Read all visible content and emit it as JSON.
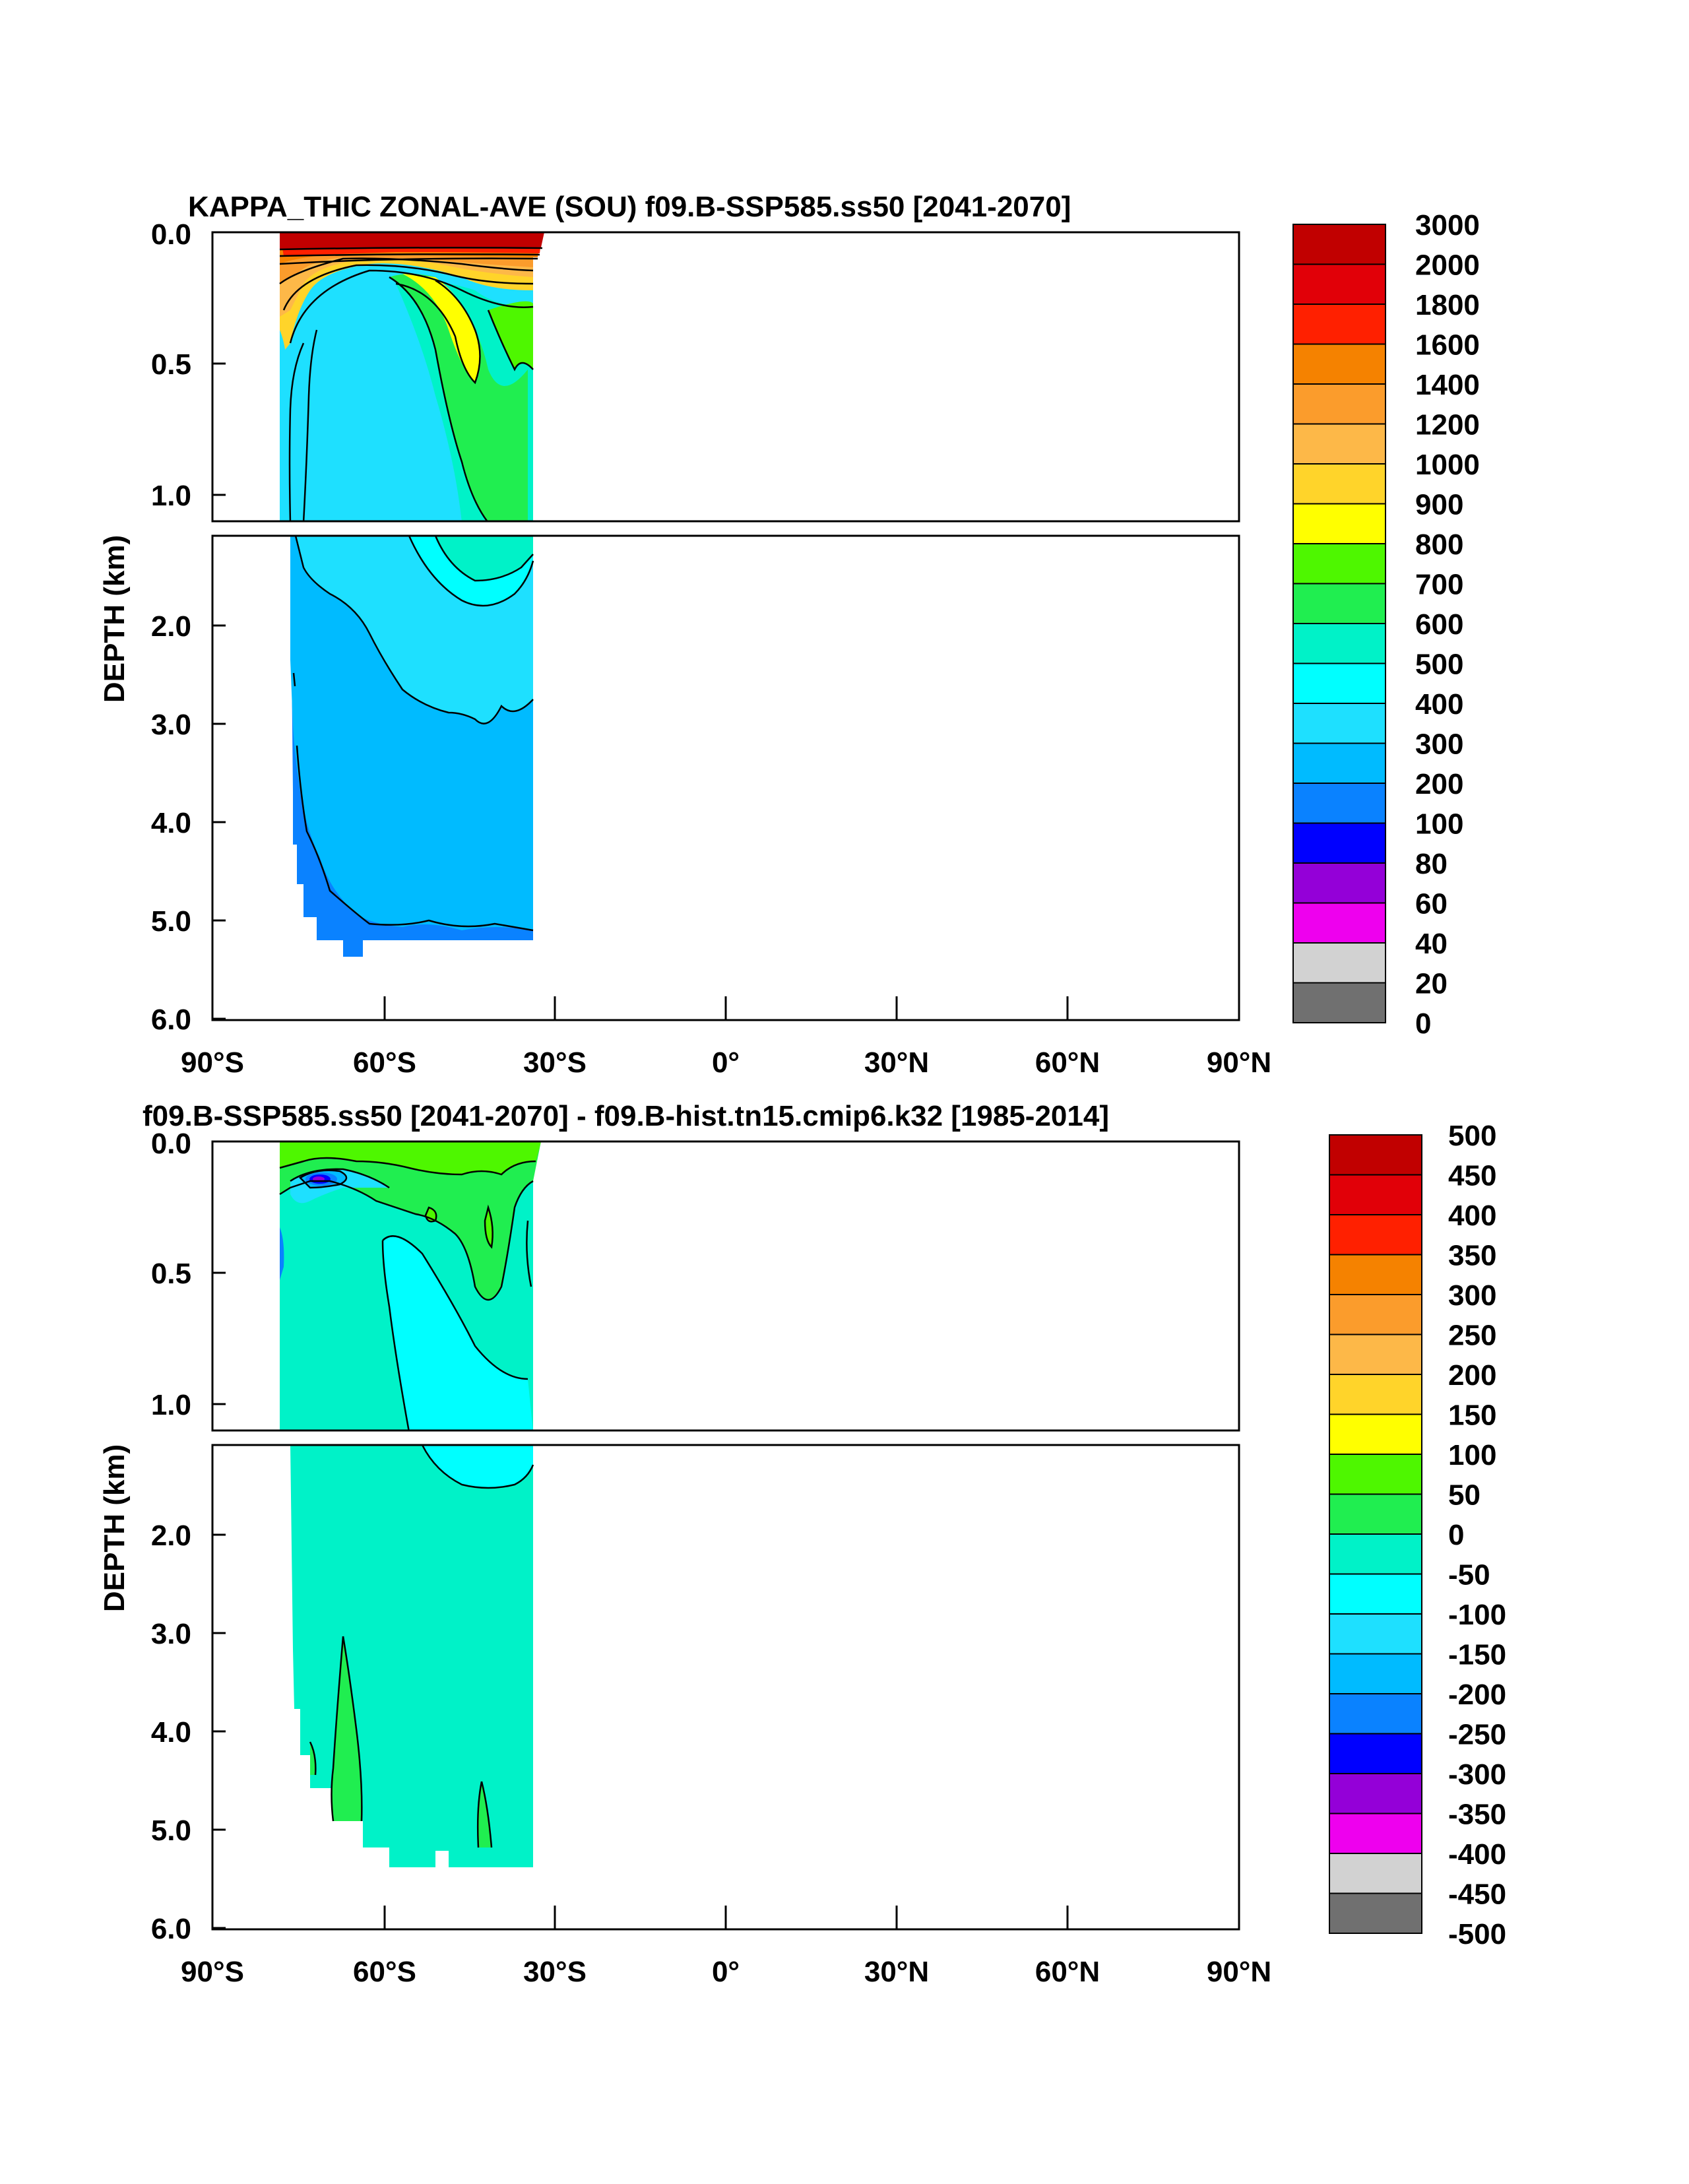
{
  "chart_data": [
    {
      "type": "heatmap",
      "subtype": "filled-contour",
      "title": "KAPPA_THIC ZONAL-AVE (SOU) f09.B-SSP585.ss50 [2041-2070]",
      "ylabel": "DEPTH (km)",
      "xlabel": "",
      "xlim": [
        -90,
        90
      ],
      "x_ticks": [
        -90,
        -60,
        -30,
        0,
        30,
        60,
        90
      ],
      "x_tick_labels": [
        "90°S",
        "60°S",
        "30°S",
        "0°",
        "30°N",
        "60°N",
        "90°N"
      ],
      "upper_panel": {
        "ylim": [
          0,
          1.15
        ],
        "y_ticks": [
          0,
          0.5,
          1.0
        ],
        "y_tick_labels": [
          "0.0",
          "0.5",
          "1.0"
        ]
      },
      "lower_panel": {
        "ylim": [
          1.15,
          6.0
        ],
        "y_ticks": [
          2,
          3,
          4,
          5,
          6
        ],
        "y_tick_labels": [
          "2.0",
          "3.0",
          "4.0",
          "5.0",
          "6.0"
        ]
      },
      "data_extent": {
        "lat_range": [
          -78,
          -34
        ],
        "max_depth": 5.4
      },
      "colorbar_labels": [
        "3000",
        "2000",
        "1800",
        "1600",
        "1400",
        "1200",
        "1000",
        "900",
        "800",
        "700",
        "600",
        "500",
        "400",
        "300",
        "200",
        "100",
        "80",
        "60",
        "40",
        "20",
        "0"
      ],
      "colorbar_colors": [
        "#c10000",
        "#e10008",
        "#ff2000",
        "#f58200",
        "#fb9c2c",
        "#fdb848",
        "#ffd42a",
        "#ffff00",
        "#4ef700",
        "#20ee50",
        "#00f2c8",
        "#00ffff",
        "#1ee0ff",
        "#00bbff",
        "#0a82ff",
        "#0000ff",
        "#9400d8",
        "#ee00ee",
        "#d2d2d2",
        "#707070"
      ]
    },
    {
      "type": "heatmap",
      "subtype": "filled-contour",
      "title": "f09.B-SSP585.ss50 [2041-2070] - f09.B-hist.tn15.cmip6.k32 [1985-2014]",
      "ylabel": "DEPTH (km)",
      "xlabel": "",
      "xlim": [
        -90,
        90
      ],
      "x_ticks": [
        -90,
        -60,
        -30,
        0,
        30,
        60,
        90
      ],
      "x_tick_labels": [
        "90°S",
        "60°S",
        "30°S",
        "0°",
        "30°N",
        "60°N",
        "90°N"
      ],
      "upper_panel": {
        "ylim": [
          0,
          1.15
        ],
        "y_ticks": [
          0,
          0.5,
          1.0
        ],
        "y_tick_labels": [
          "0.0",
          "0.5",
          "1.0"
        ]
      },
      "lower_panel": {
        "ylim": [
          1.15,
          6.0
        ],
        "y_ticks": [
          2,
          3,
          4,
          5,
          6
        ],
        "y_tick_labels": [
          "2.0",
          "3.0",
          "4.0",
          "5.0",
          "6.0"
        ]
      },
      "data_extent": {
        "lat_range": [
          -78,
          -34
        ],
        "max_depth": 5.4
      },
      "colorbar_labels": [
        "500",
        "450",
        "400",
        "350",
        "300",
        "250",
        "200",
        "150",
        "100",
        "50",
        "0",
        "-50",
        "-100",
        "-150",
        "-200",
        "-250",
        "-300",
        "-350",
        "-400",
        "-450",
        "-500"
      ],
      "colorbar_colors": [
        "#c10000",
        "#e10008",
        "#ff2000",
        "#f58200",
        "#fb9c2c",
        "#fdb848",
        "#ffd42a",
        "#ffff00",
        "#4ef700",
        "#20ee50",
        "#00f2c8",
        "#00ffff",
        "#1ee0ff",
        "#00bbff",
        "#0a82ff",
        "#0000ff",
        "#9400d8",
        "#ee00ee",
        "#d2d2d2",
        "#707070"
      ]
    }
  ]
}
